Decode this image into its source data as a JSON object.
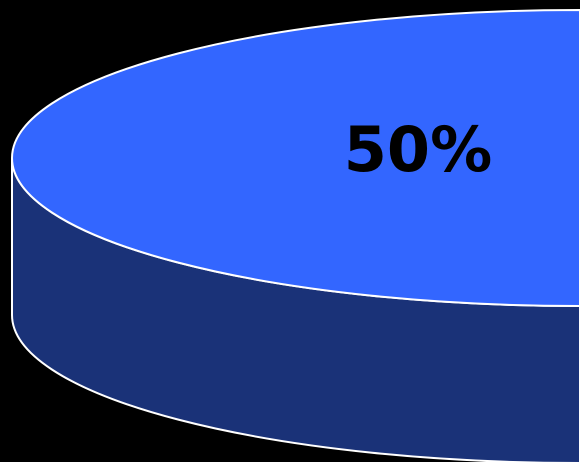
{
  "chart_data": {
    "type": "pie",
    "style": "3d",
    "slices": [
      {
        "value": 50,
        "label": "50%",
        "color": "#3366FF",
        "side_color": "#1A3278"
      }
    ],
    "outline_color": "#FFFFFF",
    "background_color": "#000000"
  }
}
